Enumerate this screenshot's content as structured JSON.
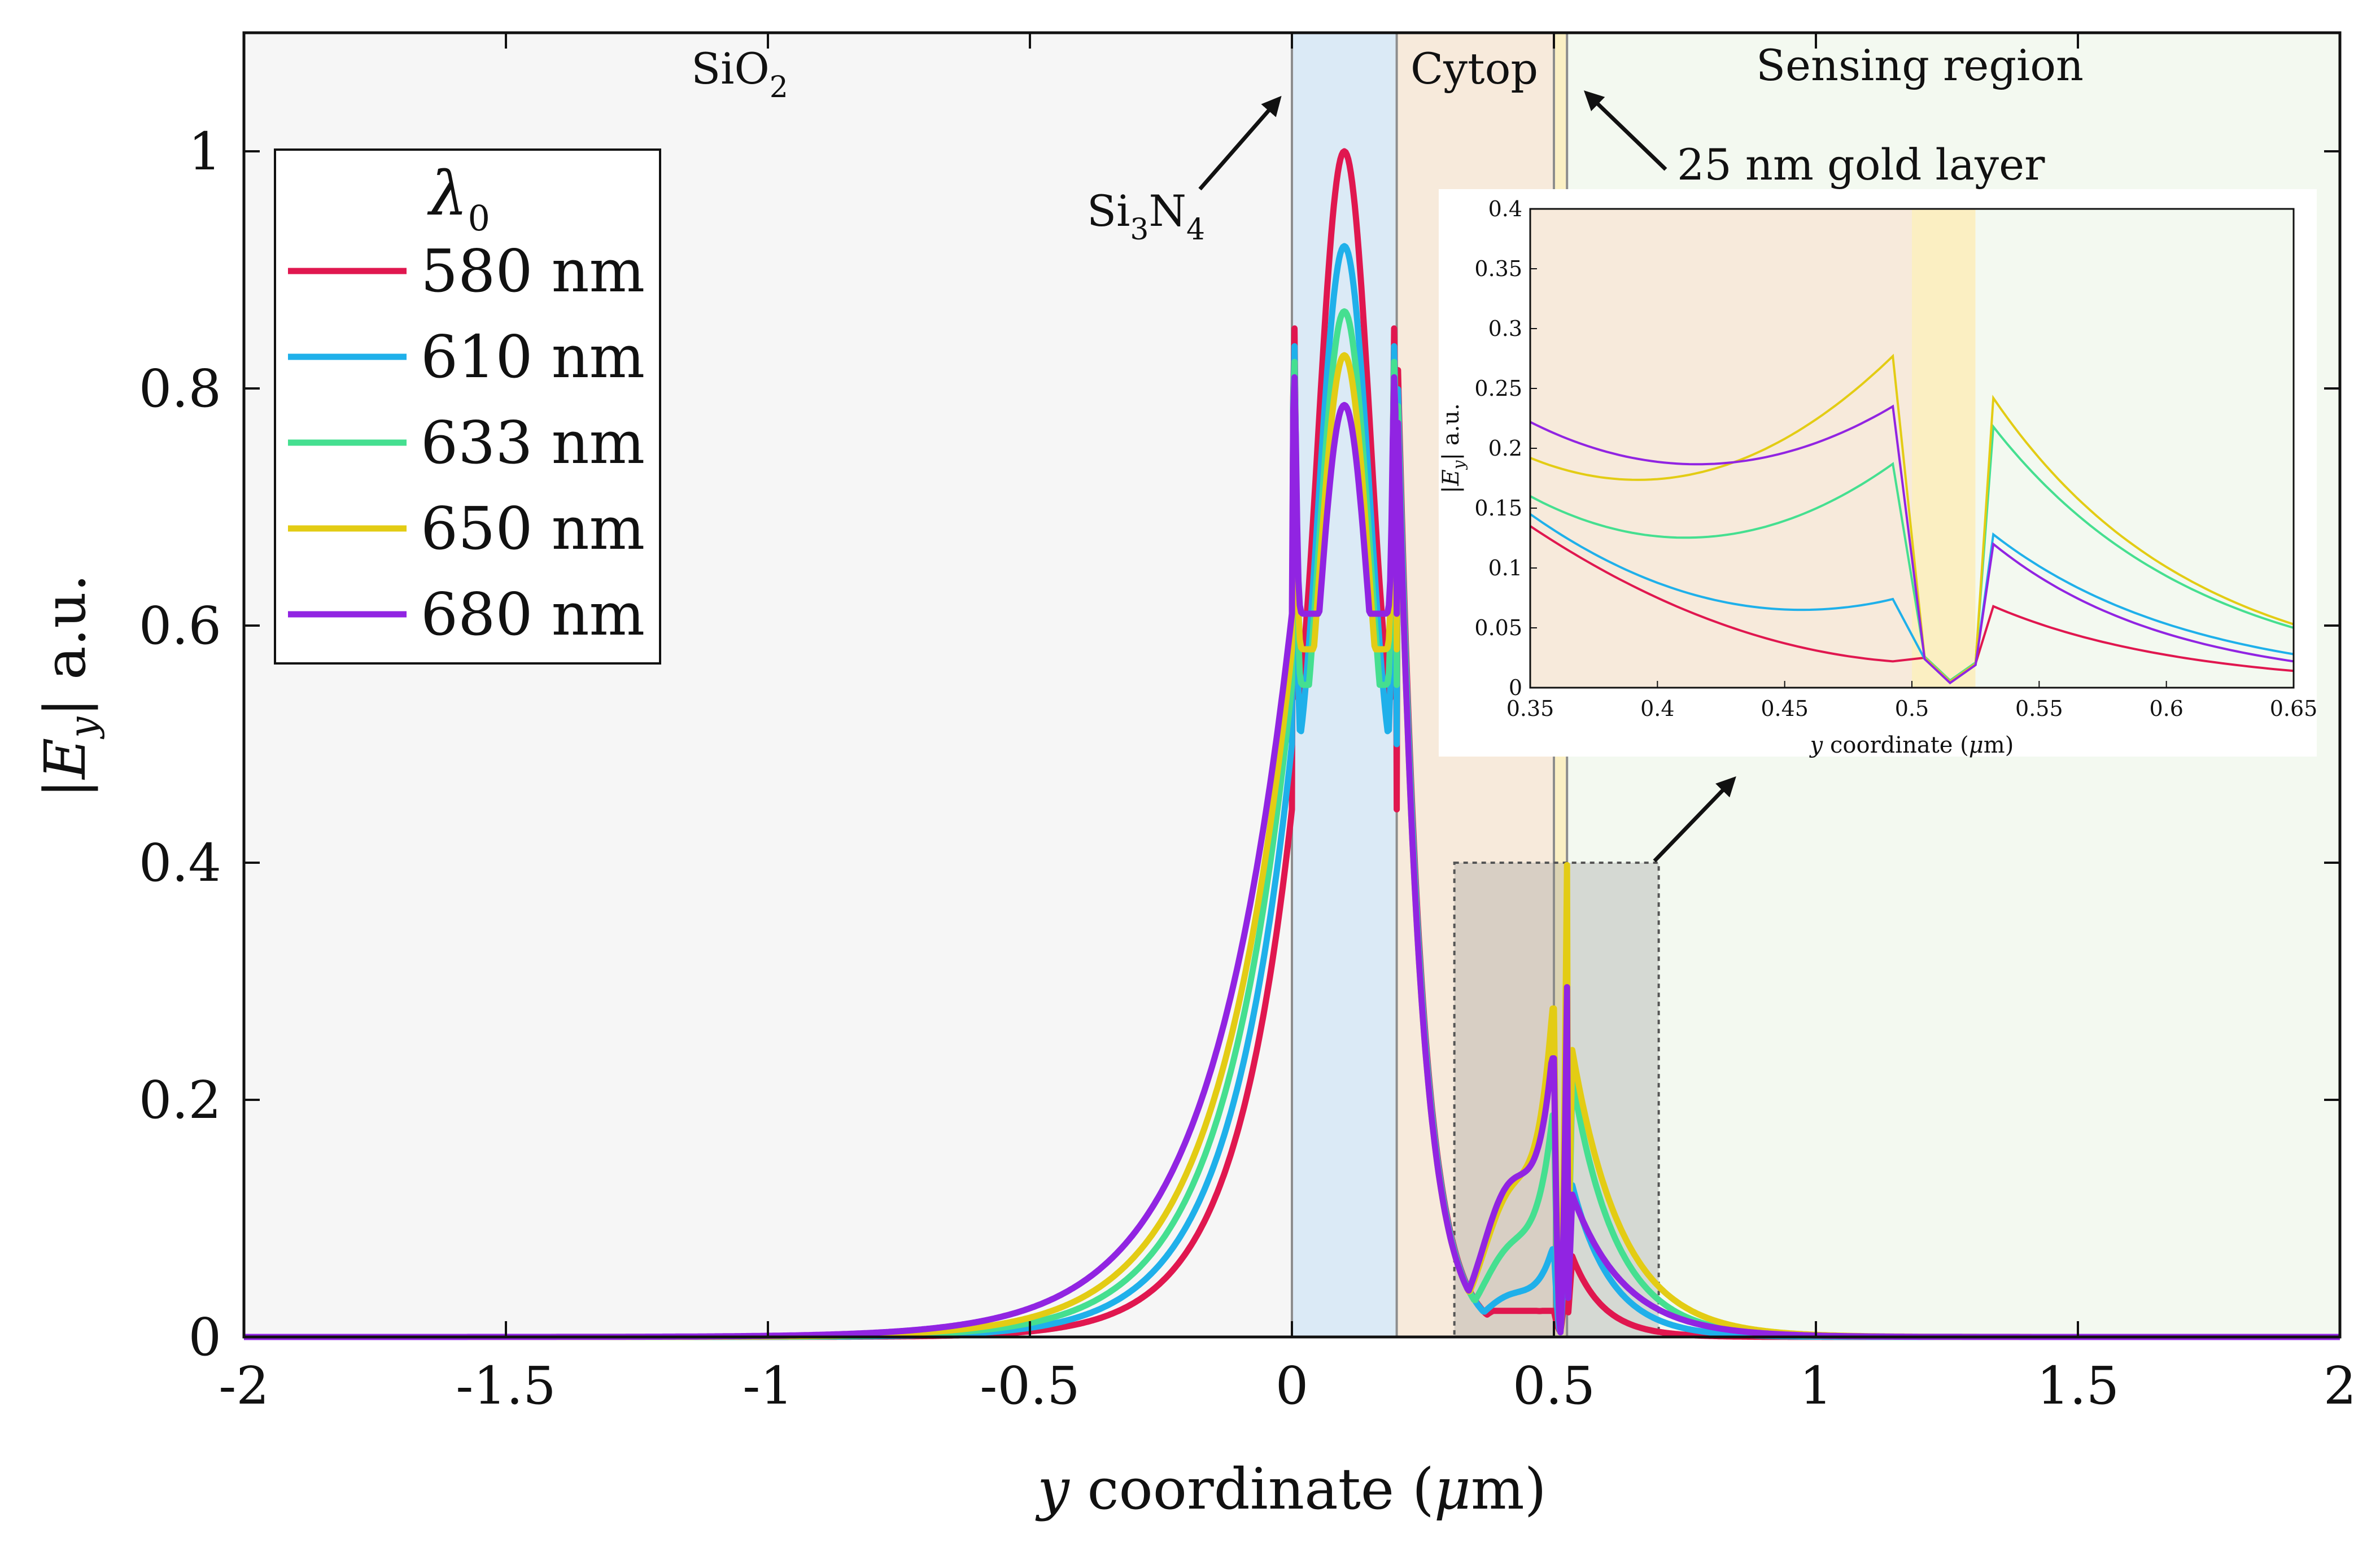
{
  "chart_data": {
    "type": "line",
    "xlabel": "y coordinate (μm)",
    "xlabel_parts": {
      "var": "y",
      "rest": " coordinate (",
      "mu": "μ",
      "unit": "m)"
    },
    "ylabel": "|E_y| a.u.",
    "ylabel_parts": {
      "bar1": "|",
      "var": "E",
      "sub": "y",
      "bar2": "|",
      "unit": " a.u."
    },
    "xlim": [
      -2,
      2
    ],
    "ylim": [
      0,
      1.1
    ],
    "x_ticks": [
      -2,
      -1.5,
      -1,
      -0.5,
      0,
      0.5,
      1,
      1.5,
      2
    ],
    "x_tick_labels": [
      "-2",
      "-1.5",
      "-1",
      "-0.5",
      "0",
      "0.5",
      "1",
      "1.5",
      "2"
    ],
    "y_ticks": [
      0,
      0.2,
      0.4,
      0.6,
      0.8,
      1
    ],
    "y_tick_labels": [
      "0",
      "0.2",
      "0.4",
      "0.6",
      "0.8",
      "1"
    ],
    "regions": [
      {
        "name": "SiO2",
        "x0": -2,
        "x1": 0,
        "color": "#f6f6f6"
      },
      {
        "name": "Si3N4",
        "x0": 0,
        "x1": 0.2,
        "color": "#dbeaf6"
      },
      {
        "name": "Cytop",
        "x0": 0.2,
        "x1": 0.5,
        "color": "#f7eadb"
      },
      {
        "name": "Gold",
        "x0": 0.5,
        "x1": 0.525,
        "color": "#fbf0c4"
      },
      {
        "name": "Sensing region",
        "x0": 0.525,
        "x1": 2,
        "color": "#f3f9f0"
      }
    ],
    "labels": {
      "sio2": {
        "main": "SiO",
        "sub": "2"
      },
      "si3n4": {
        "a": "Si",
        "sub1": "3",
        "b": "N",
        "sub2": "4"
      },
      "cytop": "Cytop",
      "sensing": "Sensing region",
      "gold": "25 nm gold layer"
    },
    "legend": {
      "title_symbol": "λ",
      "title_sub": "0",
      "entries": [
        "580 nm",
        "610 nm",
        "633 nm",
        "650 nm",
        "680 nm"
      ]
    },
    "series": [
      {
        "name": "580 nm",
        "color": "#e0174f",
        "peak": 1.0,
        "edge_top": 0.862,
        "dip": 0.445,
        "decay": 0.11,
        "cytop_mid": 0.04,
        "cytop_end": 0.022,
        "gold_min": 0.005,
        "sens_peak": 0.068,
        "sens_decay": 0.06
      },
      {
        "name": "610 nm",
        "color": "#1fb0ea",
        "peak": 0.92,
        "edge_top": 0.845,
        "dip": 0.5,
        "decay": 0.12,
        "cytop_mid": 0.045,
        "cytop_end": 0.074,
        "gold_min": 0.004,
        "sens_peak": 0.128,
        "sens_decay": 0.075
      },
      {
        "name": "633 nm",
        "color": "#45df90",
        "peak": 0.865,
        "edge_top": 0.83,
        "dip": 0.55,
        "decay": 0.13,
        "cytop_mid": 0.093,
        "cytop_end": 0.187,
        "gold_min": 0.006,
        "sens_peak": 0.218,
        "sens_decay": 0.085
      },
      {
        "name": "650 nm",
        "color": "#e3cc14",
        "peak": 0.828,
        "edge_top": 0.815,
        "dip": 0.58,
        "decay": 0.14,
        "cytop_mid": 0.153,
        "cytop_end": 0.277,
        "gold_min": 0.005,
        "sens_peak": 0.242,
        "sens_decay": 0.095
      },
      {
        "name": "680 nm",
        "color": "#9124e2",
        "peak": 0.786,
        "edge_top": 0.815,
        "dip": 0.61,
        "decay": 0.155,
        "cytop_mid": 0.171,
        "cytop_end": 0.235,
        "gold_min": 0.004,
        "sens_peak": 0.12,
        "sens_decay": 0.1
      }
    ],
    "zoom_box": {
      "x0": 0.31,
      "x1": 0.7,
      "y0": 0,
      "y1": 0.4
    },
    "inset": {
      "xlabel_parts": {
        "var": "y",
        "rest": " coordinate (",
        "mu": "μ",
        "unit": "m)"
      },
      "ylabel_parts": {
        "bar1": "|",
        "var": "E",
        "sub": "y",
        "bar2": "|",
        "unit": " a.u."
      },
      "xlim": [
        0.35,
        0.65
      ],
      "ylim": [
        0,
        0.4
      ],
      "x_tick_labels": [
        "0.35",
        "0.4",
        "0.45",
        "0.5",
        "0.55",
        "0.6",
        "0.65"
      ],
      "x_ticks": [
        0.35,
        0.4,
        0.45,
        0.5,
        0.55,
        0.6,
        0.65
      ],
      "y_tick_labels": [
        "0",
        "0.05",
        "0.1",
        "0.15",
        "0.2",
        "0.25",
        "0.3",
        "0.35",
        "0.4"
      ],
      "y_ticks": [
        0,
        0.05,
        0.1,
        0.15,
        0.2,
        0.25,
        0.3,
        0.35,
        0.4
      ],
      "series_at_0_35": [
        0.135,
        0.145,
        0.16,
        0.192,
        0.222
      ],
      "series_at_0_65": [
        0.014,
        0.028,
        0.05,
        0.053,
        0.022
      ]
    }
  }
}
